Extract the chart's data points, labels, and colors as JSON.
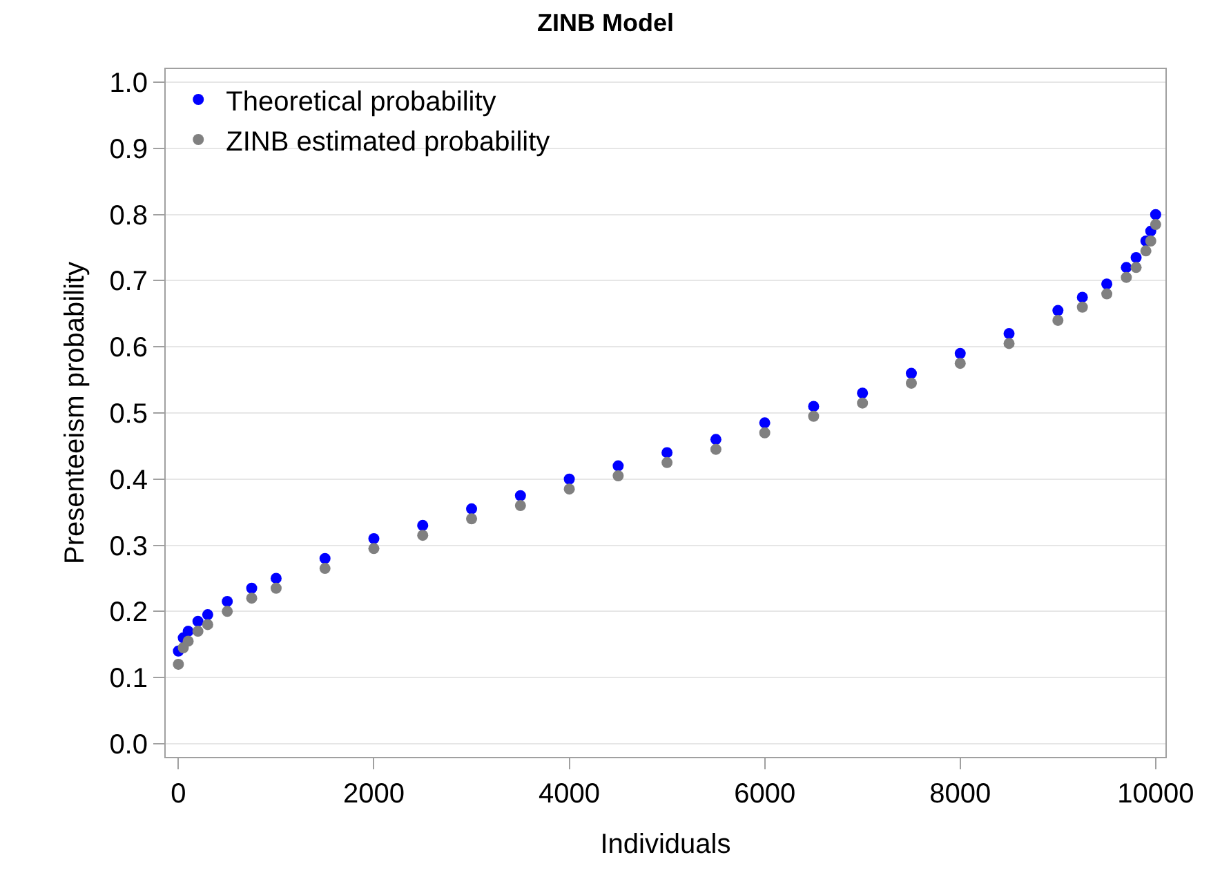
{
  "chart_data": {
    "type": "scatter",
    "title": "ZINB Model",
    "xlabel": "Individuals",
    "ylabel": "Presenteeism probability",
    "x": [
      0,
      50,
      100,
      200,
      300,
      500,
      750,
      1000,
      1500,
      2000,
      2500,
      3000,
      3500,
      4000,
      4500,
      5000,
      5500,
      6000,
      6500,
      7000,
      7500,
      8000,
      8500,
      9000,
      9250,
      9500,
      9700,
      9800,
      9900,
      9950,
      10000
    ],
    "series": [
      {
        "name": "Theoretical probability",
        "color": "#0000ff",
        "values": [
          0.14,
          0.16,
          0.17,
          0.185,
          0.195,
          0.215,
          0.235,
          0.25,
          0.28,
          0.31,
          0.33,
          0.355,
          0.375,
          0.4,
          0.42,
          0.44,
          0.46,
          0.485,
          0.51,
          0.53,
          0.56,
          0.59,
          0.62,
          0.655,
          0.675,
          0.695,
          0.72,
          0.735,
          0.76,
          0.775,
          0.8
        ]
      },
      {
        "name": "ZINB estimated probability",
        "color": "#808080",
        "values": [
          0.12,
          0.145,
          0.155,
          0.17,
          0.18,
          0.2,
          0.22,
          0.235,
          0.265,
          0.295,
          0.315,
          0.34,
          0.36,
          0.385,
          0.405,
          0.425,
          0.445,
          0.47,
          0.495,
          0.515,
          0.545,
          0.575,
          0.605,
          0.64,
          0.66,
          0.68,
          0.705,
          0.72,
          0.745,
          0.76,
          0.785
        ]
      }
    ],
    "xlim": [
      -130,
      10100
    ],
    "xticks": [
      0,
      2000,
      4000,
      6000,
      8000,
      10000
    ],
    "ylim": [
      -0.02,
      1.02
    ],
    "yticks": [
      {
        "value": 0,
        "label": "0.0"
      },
      {
        "value": 0.1,
        "label": "0.1"
      },
      {
        "value": 0.2,
        "label": "0.2"
      },
      {
        "value": 0.3,
        "label": "0.3"
      },
      {
        "value": 0.4,
        "label": "0.4"
      },
      {
        "value": 0.5,
        "label": "0.5"
      },
      {
        "value": 0.6,
        "label": "0.6"
      },
      {
        "value": 0.7,
        "label": "0.7"
      },
      {
        "value": 0.8,
        "label": "0.8"
      },
      {
        "value": 0.9,
        "label": "0.9"
      },
      {
        "value": 1,
        "label": "1.0"
      }
    ],
    "grid": "y",
    "legend": "top left",
    "marker": "circle"
  }
}
